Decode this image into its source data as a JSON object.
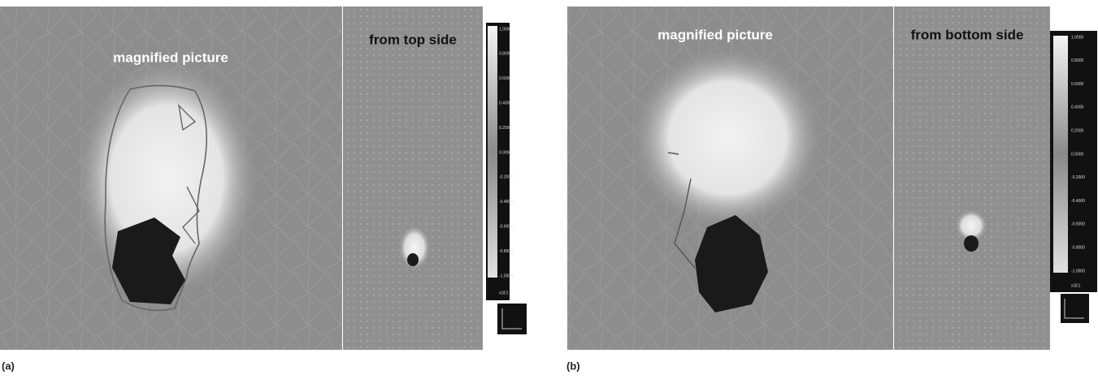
{
  "panels": [
    {
      "label": "(a)",
      "views": [
        {
          "caption": "magnified picture"
        },
        {
          "caption": "from top side"
        }
      ],
      "colorbar": {
        "ticks": [
          "1.0000",
          "0.8000",
          "0.6000",
          "0.4000",
          "0.2000",
          "0.0000",
          "-0.2000",
          "-0.4000",
          "-0.6000",
          "-0.8000",
          "-1.0000"
        ],
        "multiplier": "x1E1"
      }
    },
    {
      "label": "(b)",
      "views": [
        {
          "caption": "magnified picture"
        },
        {
          "caption": "from bottom side"
        }
      ],
      "colorbar": {
        "ticks": [
          "1.0000",
          "0.8000",
          "0.6000",
          "0.4000",
          "0.2000",
          "0.0000",
          "-0.2000",
          "-0.4000",
          "-0.6000",
          "-0.8000",
          "-1.0000"
        ],
        "multiplier": "x1E1"
      }
    }
  ]
}
